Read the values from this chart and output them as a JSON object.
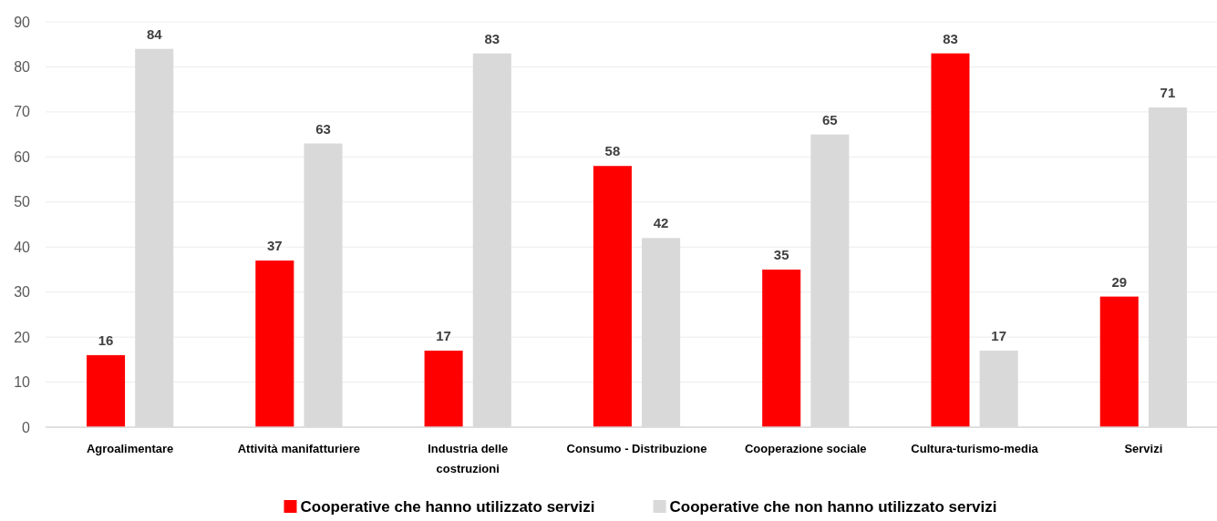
{
  "chart_data": {
    "type": "bar",
    "categories": [
      "Agroalimentare",
      "Attività manifatturiere",
      "Industria delle costruzioni",
      "Consumo - Distribuzione",
      "Cooperazione sociale",
      "Cultura-turismo-media",
      "Servizi"
    ],
    "series": [
      {
        "name": "Cooperative che hanno utilizzato servizi",
        "color": "#ff0000",
        "values": [
          16,
          37,
          17,
          58,
          35,
          83,
          29
        ]
      },
      {
        "name": "Cooperative che non hanno utilizzato servizi",
        "color": "#d9d9d9",
        "values": [
          84,
          63,
          83,
          42,
          65,
          17,
          71
        ]
      }
    ],
    "ylim": [
      0,
      90
    ],
    "yticks": [
      0,
      10,
      20,
      30,
      40,
      50,
      60,
      70,
      80,
      90
    ],
    "grid": "y",
    "legend": "bottom",
    "data_labels": true
  }
}
